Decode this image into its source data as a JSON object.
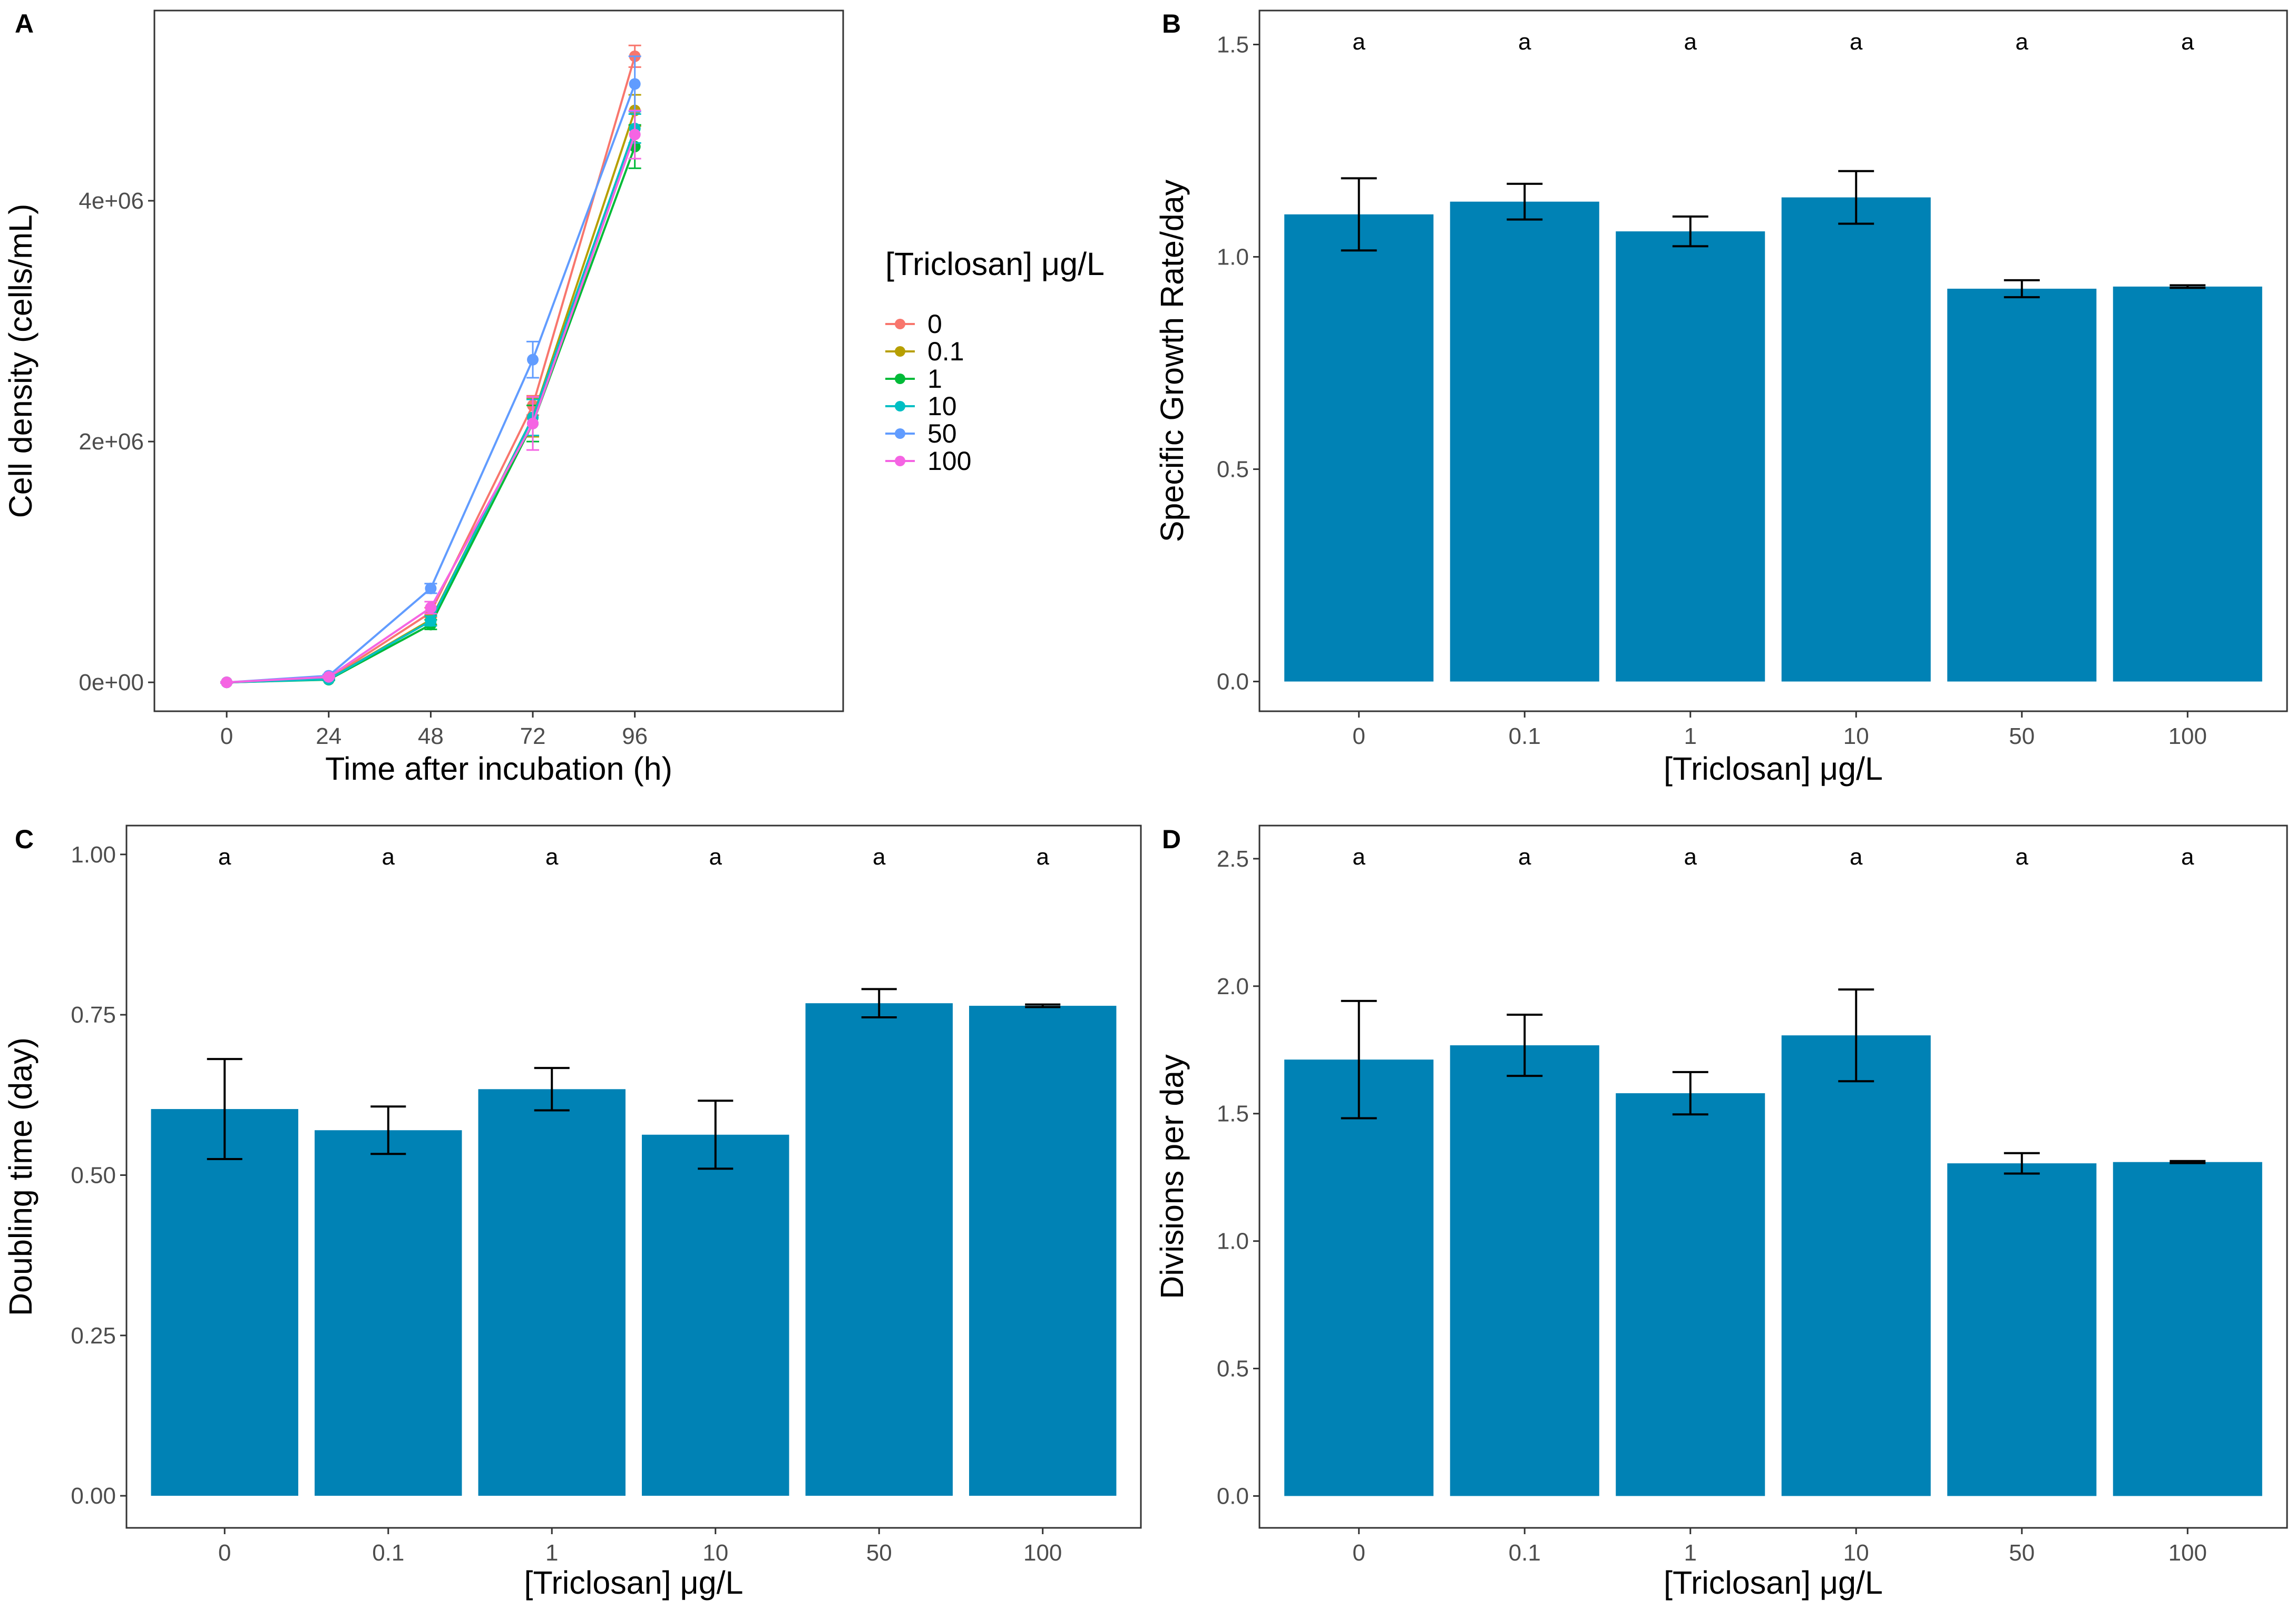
{
  "colors": {
    "bar": "#0082b5",
    "error": "#000000",
    "frame": "#333333",
    "tick": "#4d4d4d",
    "series": [
      "#F8766D",
      "#B79F00",
      "#00BA38",
      "#00BFC4",
      "#619CFF",
      "#F564E3"
    ]
  },
  "chart_data": [
    {
      "panel": "A",
      "type": "line",
      "xlabel": "Time after incubation (h)",
      "ylabel": "Cell density (cells/mL)",
      "x": [
        0,
        24,
        48,
        72,
        96
      ],
      "xlim": [
        -17,
        145
      ],
      "ylim": [
        -240000,
        5580000
      ],
      "xticks": [
        0,
        24,
        48,
        72,
        96
      ],
      "yticks": [
        0,
        2000000,
        4000000
      ],
      "ytick_labels": [
        "0e+00",
        "2e+06",
        "4e+06"
      ],
      "legend_title": "[Triclosan] μg/L",
      "legend_position": "right",
      "series": [
        {
          "name": "0",
          "values": [
            0,
            30000,
            580000,
            2300000,
            5200000
          ],
          "err": [
            5000,
            8000,
            40000,
            80000,
            90000
          ]
        },
        {
          "name": "0.1",
          "values": [
            0,
            25000,
            520000,
            2200000,
            4750000
          ],
          "err": [
            5000,
            8000,
            40000,
            160000,
            130000
          ]
        },
        {
          "name": "1",
          "values": [
            0,
            22000,
            480000,
            2150000,
            4450000
          ],
          "err": [
            5000,
            6000,
            40000,
            150000,
            180000
          ]
        },
        {
          "name": "10",
          "values": [
            0,
            25000,
            510000,
            2200000,
            4600000
          ],
          "err": [
            5000,
            6000,
            40000,
            150000,
            120000
          ]
        },
        {
          "name": "50",
          "values": [
            0,
            55000,
            780000,
            2680000,
            4970000
          ],
          "err": [
            5000,
            10000,
            40000,
            150000,
            230000
          ]
        },
        {
          "name": "100",
          "values": [
            0,
            45000,
            620000,
            2150000,
            4550000
          ],
          "err": [
            5000,
            8000,
            50000,
            220000,
            200000
          ]
        }
      ]
    },
    {
      "panel": "B",
      "type": "bar",
      "xlabel": "[Triclosan] μg/L",
      "ylabel": "Specific Growth Rate/day",
      "categories": [
        "0",
        "0.1",
        "1",
        "10",
        "50",
        "100"
      ],
      "values": [
        1.1,
        1.13,
        1.06,
        1.14,
        0.925,
        0.93
      ],
      "err": [
        0.085,
        0.042,
        0.035,
        0.062,
        0.02,
        0.003
      ],
      "significance": [
        "a",
        "a",
        "a",
        "a",
        "a",
        "a"
      ],
      "ylim": [
        -0.07,
        1.58
      ],
      "yticks": [
        0.0,
        0.5,
        1.0,
        1.5
      ],
      "ytick_labels": [
        "0.0",
        "0.5",
        "1.0",
        "1.5"
      ]
    },
    {
      "panel": "C",
      "type": "bar",
      "xlabel": "[Triclosan] μg/L",
      "ylabel": "Doubling time (day)",
      "categories": [
        "0",
        "0.1",
        "1",
        "10",
        "50",
        "100"
      ],
      "values": [
        0.603,
        0.57,
        0.634,
        0.563,
        0.768,
        0.764
      ],
      "err": [
        0.078,
        0.037,
        0.033,
        0.053,
        0.022,
        0.002
      ],
      "significance": [
        "a",
        "a",
        "a",
        "a",
        "a",
        "a"
      ],
      "ylim": [
        -0.05,
        1.045
      ],
      "yticks": [
        0.0,
        0.25,
        0.5,
        0.75,
        1.0
      ],
      "ytick_labels": [
        "0.00",
        "0.25",
        "0.50",
        "0.75",
        "1.00"
      ]
    },
    {
      "panel": "D",
      "type": "bar",
      "xlabel": "[Triclosan] μg/L",
      "ylabel": "Divisions per day",
      "categories": [
        "0",
        "0.1",
        "1",
        "10",
        "50",
        "100"
      ],
      "values": [
        1.712,
        1.768,
        1.58,
        1.807,
        1.305,
        1.31
      ],
      "err": [
        0.23,
        0.12,
        0.083,
        0.18,
        0.04,
        0.004
      ],
      "significance": [
        "a",
        "a",
        "a",
        "a",
        "a",
        "a"
      ],
      "ylim": [
        -0.125,
        2.63
      ],
      "yticks": [
        0.0,
        0.5,
        1.0,
        1.5,
        2.0,
        2.5
      ],
      "ytick_labels": [
        "0.0",
        "0.5",
        "1.0",
        "1.5",
        "2.0",
        "2.5"
      ]
    }
  ]
}
